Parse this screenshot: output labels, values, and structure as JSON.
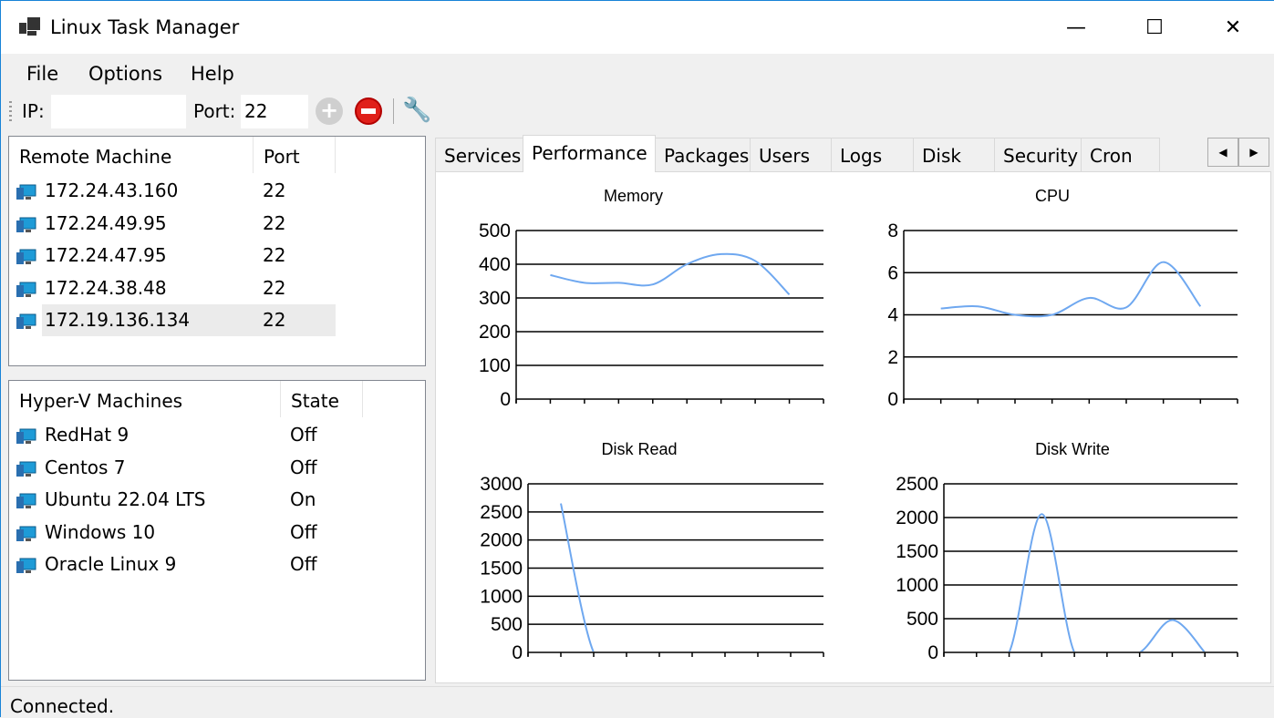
{
  "window": {
    "title": "Linux Task Manager",
    "minimize": "—",
    "maximize": "☐",
    "close": "✕"
  },
  "menu": [
    "File",
    "Options",
    "Help"
  ],
  "toolbar": {
    "ip_label": "IP:",
    "ip_value": "",
    "port_label": "Port:",
    "port_value": "22",
    "add_icon": "plus-circle",
    "remove_icon": "minus-circle",
    "settings_icon": "wrench"
  },
  "remote": {
    "headers": [
      "Remote Machine",
      "Port"
    ],
    "rows": [
      {
        "name": "172.24.43.160",
        "port": "22"
      },
      {
        "name": "172.24.49.95",
        "port": "22"
      },
      {
        "name": "172.24.47.95",
        "port": "22"
      },
      {
        "name": "172.24.38.48",
        "port": "22"
      },
      {
        "name": "172.19.136.134",
        "port": "22"
      }
    ]
  },
  "hyperv": {
    "headers": [
      "Hyper-V Machines",
      "State"
    ],
    "rows": [
      {
        "name": "RedHat 9",
        "state": "Off"
      },
      {
        "name": "Centos 7",
        "state": "Off"
      },
      {
        "name": "Ubuntu 22.04 LTS",
        "state": "On"
      },
      {
        "name": "Windows 10",
        "state": "Off"
      },
      {
        "name": "Oracle Linux 9",
        "state": "Off"
      }
    ]
  },
  "tabs": [
    "Services",
    "Performance",
    "Packages",
    "Users",
    "Logs",
    "Disk",
    "Security",
    "Cron"
  ],
  "active_tab": "Performance",
  "tab_scroll": {
    "left": "◀",
    "right": "▶"
  },
  "status": "Connected.",
  "colors": {
    "line": "#6fa8f0",
    "accent": "#1883d7"
  },
  "chart_data": [
    {
      "type": "line",
      "title": "Memory",
      "ylim": [
        0,
        500
      ],
      "yticks": [
        0,
        100,
        200,
        300,
        400,
        500
      ],
      "values": [
        368,
        345,
        345,
        340,
        400,
        430,
        410,
        310
      ],
      "grid": true
    },
    {
      "type": "line",
      "title": "CPU",
      "ylim": [
        0,
        8
      ],
      "yticks": [
        0,
        2,
        4,
        6,
        8
      ],
      "values": [
        4.3,
        4.4,
        4.0,
        4.0,
        4.8,
        4.35,
        6.5,
        4.4
      ],
      "grid": true
    },
    {
      "type": "line",
      "title": "Disk Read",
      "ylim": [
        0,
        3000
      ],
      "yticks": [
        0,
        500,
        1000,
        1500,
        2000,
        2500,
        3000
      ],
      "values": [
        2650,
        0,
        0,
        0,
        0,
        0,
        0,
        0
      ],
      "grid": true
    },
    {
      "type": "line",
      "title": "Disk Write",
      "ylim": [
        0,
        2500
      ],
      "yticks": [
        0,
        500,
        1000,
        1500,
        2000,
        2500
      ],
      "values": [
        0,
        0,
        2050,
        0,
        0,
        0,
        480,
        0
      ],
      "grid": true
    }
  ]
}
